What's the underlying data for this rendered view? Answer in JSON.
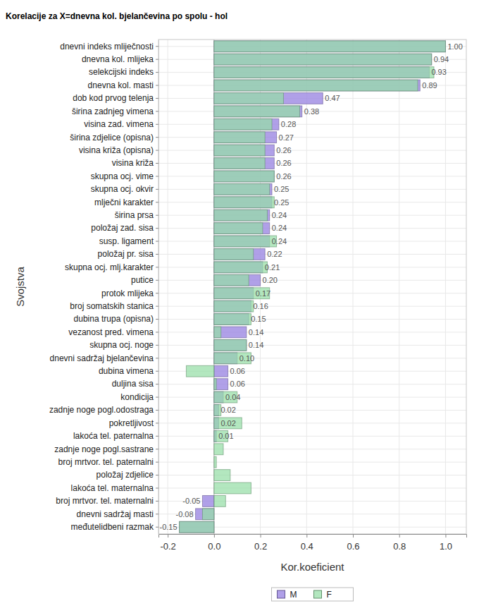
{
  "chart_data": {
    "type": "bar",
    "orientation": "horizontal",
    "title": "Korelacije za X=dnevna kol. bjelančevina po spolu - hol",
    "x_label": "Kor.koeficient",
    "y_label": "Svojstva",
    "categories": [
      "dnevni indeks mliječnosti",
      "dnevna kol. mlijeka",
      "selekcijski indeks",
      "dnevna kol. masti",
      "dob kod prvog telenja",
      "širina zadnjeg vimena",
      "visina zad. vimena",
      "širina zdjelice (opisna)",
      "visina križa (opisna)",
      "visina križa",
      "skupna ocj. vime",
      "skupna ocj. okvir",
      "mlječni karakter",
      "širina prsa",
      "položaj zad. sisa",
      "susp. ligament",
      "položaj pr. sisa",
      "skupna ocj. mlj.karakter",
      "putice",
      "protok mlijeka",
      "broj somatskih stanica",
      "dubina trupa (opisna)",
      "vezanost pred. vimena",
      "skupna ocj. noge",
      "dnevni sadržaj bjelančevina",
      "dubina vimena",
      "duljina sisa",
      "kondicija",
      "zadnje noge pogl.odostraga",
      "pokretljivost",
      "lakoća tel. paternalna",
      "zadnje noge pogl.sastrane",
      "broj mrtvor. tel. paternalni",
      "položaj zdjelice",
      "lakoća tel. maternalna",
      "broj mrtvor. tel. maternalni",
      "dnevni sadržaj masti",
      "međutelidbeni razmak"
    ],
    "series": [
      {
        "name": "M",
        "color": "#9c88e2",
        "values": [
          1.0,
          0.94,
          0.93,
          0.89,
          0.47,
          0.38,
          0.28,
          0.27,
          0.26,
          0.26,
          0.26,
          0.25,
          0.25,
          0.24,
          0.24,
          0.24,
          0.22,
          0.21,
          0.2,
          0.17,
          0.16,
          0.15,
          0.14,
          0.14,
          0.1,
          0.06,
          0.06,
          0.04,
          0.02,
          0.02,
          0.01,
          null,
          null,
          null,
          null,
          -0.05,
          -0.08,
          -0.15
        ],
        "value_labels": [
          "1.00",
          "0.94",
          "0.93",
          "0.89",
          "0.47",
          "0.38",
          "0.28",
          "0.27",
          "0.26",
          "0.26",
          "0.26",
          "0.25",
          "0.25",
          "0.24",
          "0.24",
          "0.24",
          "0.22",
          "0.21",
          "0.20",
          "0.17",
          "0.16",
          "0.15",
          "0.14",
          "0.14",
          "0.10",
          "0.06",
          "0.06",
          "0.04",
          "0.02",
          "0.02",
          "0.01",
          null,
          null,
          null,
          null,
          "-0.05",
          "-0.08",
          "-0.15"
        ]
      },
      {
        "name": "F",
        "color": "#96dea6",
        "values": [
          1.0,
          0.94,
          0.95,
          0.88,
          0.3,
          0.37,
          0.25,
          0.22,
          0.22,
          0.22,
          0.26,
          0.24,
          0.26,
          0.23,
          0.21,
          0.27,
          0.17,
          0.23,
          0.15,
          0.24,
          0.17,
          0.16,
          0.03,
          0.14,
          0.16,
          -0.12,
          0.01,
          0.1,
          0.03,
          0.12,
          0.06,
          0.04,
          0.01,
          0.07,
          0.16,
          0.05,
          -0.05,
          -0.15
        ]
      }
    ],
    "xlim": [
      -0.24,
      1.09
    ],
    "xticks": [
      -0.2,
      {
        "value": 0,
        "label": "0.0"
      },
      0.2,
      0.4,
      0.6,
      0.8,
      {
        "value": 1,
        "label": "1.0"
      }
    ],
    "grid": true,
    "legend": "bottom",
    "data_labels": true
  }
}
